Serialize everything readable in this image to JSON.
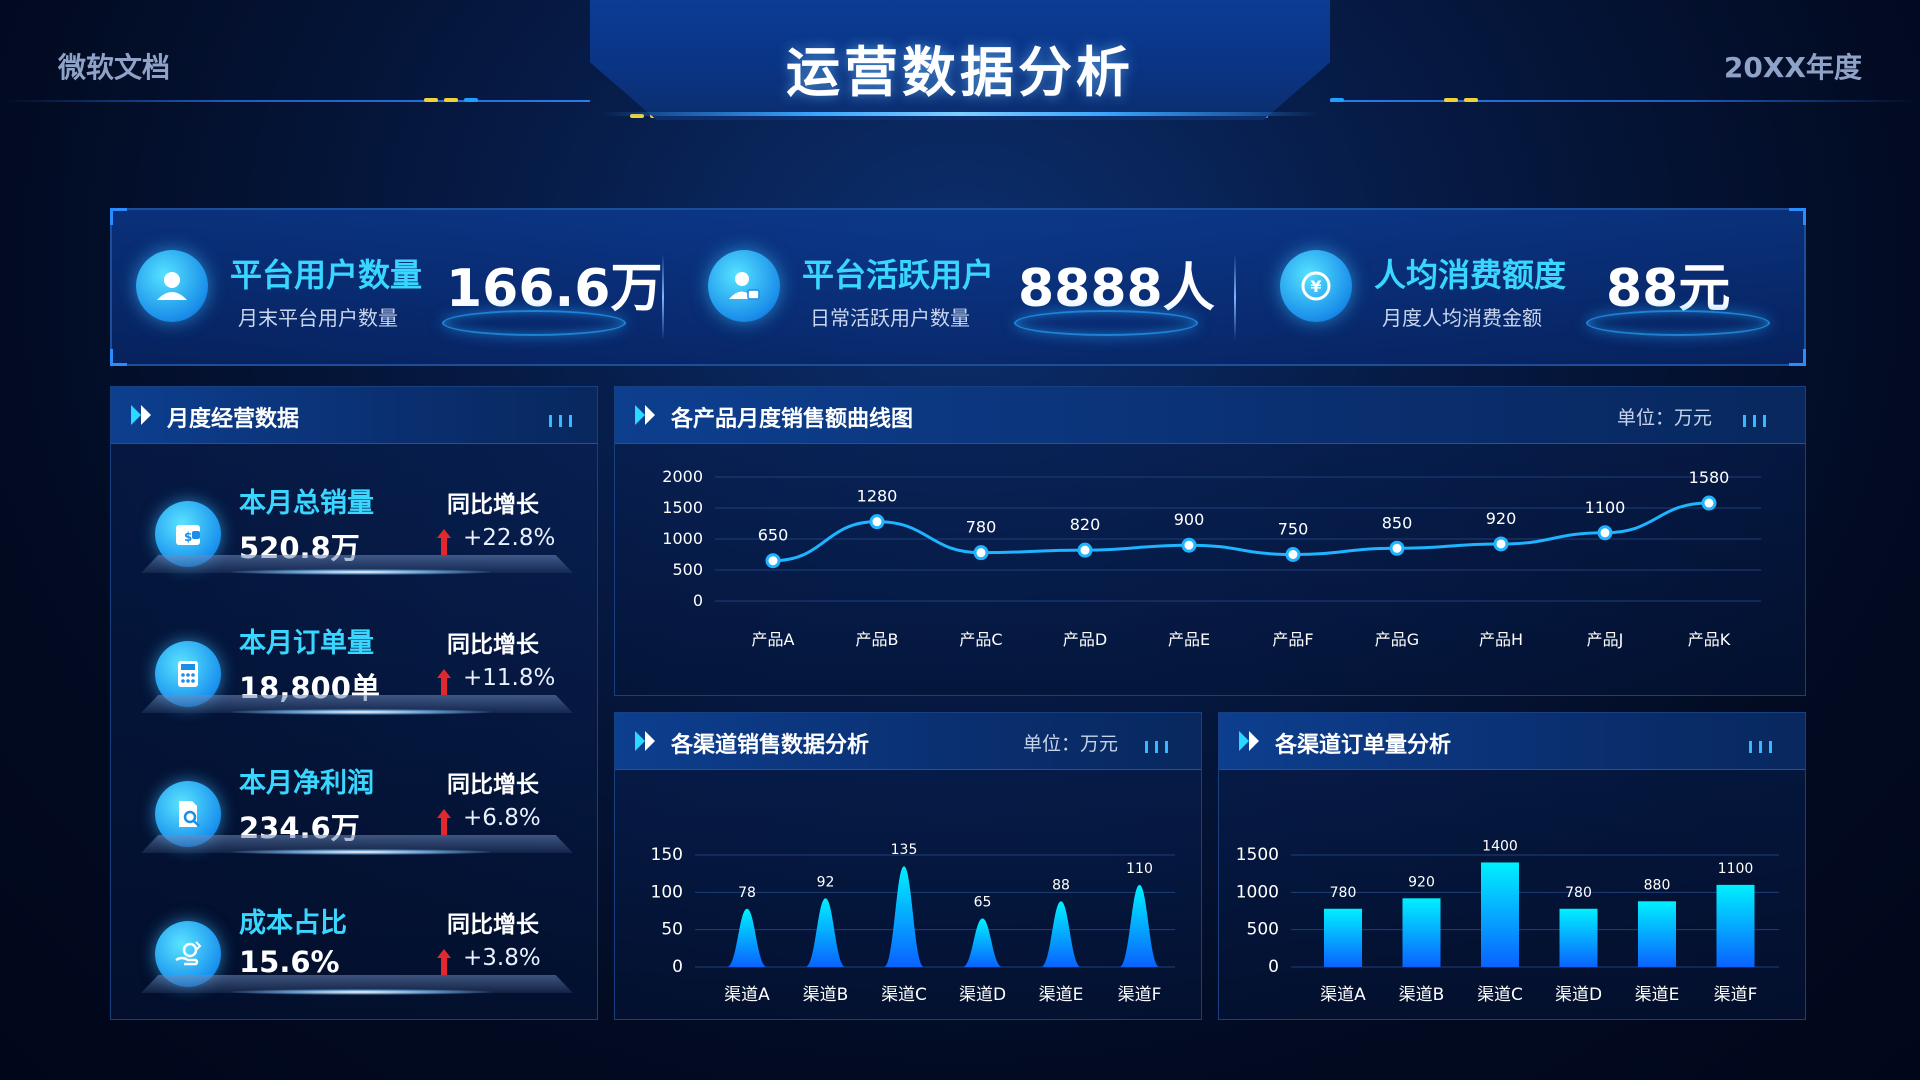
{
  "header": {
    "brand": "微软文档",
    "title": "运营数据分析",
    "year": "20XX年度"
  },
  "kpis": [
    {
      "title": "平台用户数量",
      "subtitle": "月末平台用户数量",
      "value": "166.6万",
      "icon": "user-icon"
    },
    {
      "title": "平台活跃用户",
      "subtitle": "日常活跃用户数量",
      "value": "8888人",
      "icon": "active-user-icon"
    },
    {
      "title": "人均消费额度",
      "subtitle": "月度人均消费金额",
      "value": "88元",
      "icon": "yen-icon"
    }
  ],
  "monthly": {
    "title": "月度经营数据",
    "items": [
      {
        "label": "本月总销量",
        "value": "520.8万",
        "yoy_label": "同比增长",
        "yoy": "+22.8%",
        "icon": "wallet-icon"
      },
      {
        "label": "本月订单量",
        "value": "18,800单",
        "yoy_label": "同比增长",
        "yoy": "+11.8%",
        "icon": "calculator-icon"
      },
      {
        "label": "本月净利润",
        "value": "234.6万",
        "yoy_label": "同比增长",
        "yoy": "+6.8%",
        "icon": "document-search-icon"
      },
      {
        "label": "成本占比",
        "value": "15.6%",
        "yoy_label": "同比增长",
        "yoy": "+3.8%",
        "icon": "hand-coin-icon"
      }
    ]
  },
  "colors": {
    "accent": "#39d6ff",
    "line": "#1fb4ff",
    "bar_top": "#00f0ff",
    "bar_bottom": "#0a62ff",
    "up_arrow": "#e0282e"
  },
  "chart_data": [
    {
      "id": "line",
      "type": "line",
      "title": "各产品月度销售额曲线图",
      "unit": "单位：万元",
      "categories": [
        "产品A",
        "产品B",
        "产品C",
        "产品D",
        "产品E",
        "产品F",
        "产品G",
        "产品H",
        "产品J",
        "产品K"
      ],
      "values": [
        650,
        1280,
        780,
        820,
        900,
        750,
        850,
        920,
        1100,
        1580
      ],
      "yticks": [
        0,
        500,
        1000,
        1500,
        2000
      ],
      "ylim": [
        0,
        2000
      ],
      "grid": true
    },
    {
      "id": "channel-sales",
      "type": "area",
      "title": "各渠道销售数据分析",
      "unit": "单位：万元",
      "categories": [
        "渠道A",
        "渠道B",
        "渠道C",
        "渠道D",
        "渠道E",
        "渠道F"
      ],
      "values": [
        78,
        92,
        135,
        65,
        88,
        110
      ],
      "yticks": [
        0,
        50,
        100,
        150
      ],
      "ylim": [
        0,
        150
      ],
      "grid": true
    },
    {
      "id": "channel-orders",
      "type": "bar",
      "title": "各渠道订单量分析",
      "categories": [
        "渠道A",
        "渠道B",
        "渠道C",
        "渠道D",
        "渠道E",
        "渠道F"
      ],
      "values": [
        780,
        920,
        1400,
        780,
        880,
        1100
      ],
      "yticks": [
        0,
        500,
        1000,
        1500
      ],
      "ylim": [
        0,
        1500
      ],
      "grid": true
    }
  ]
}
